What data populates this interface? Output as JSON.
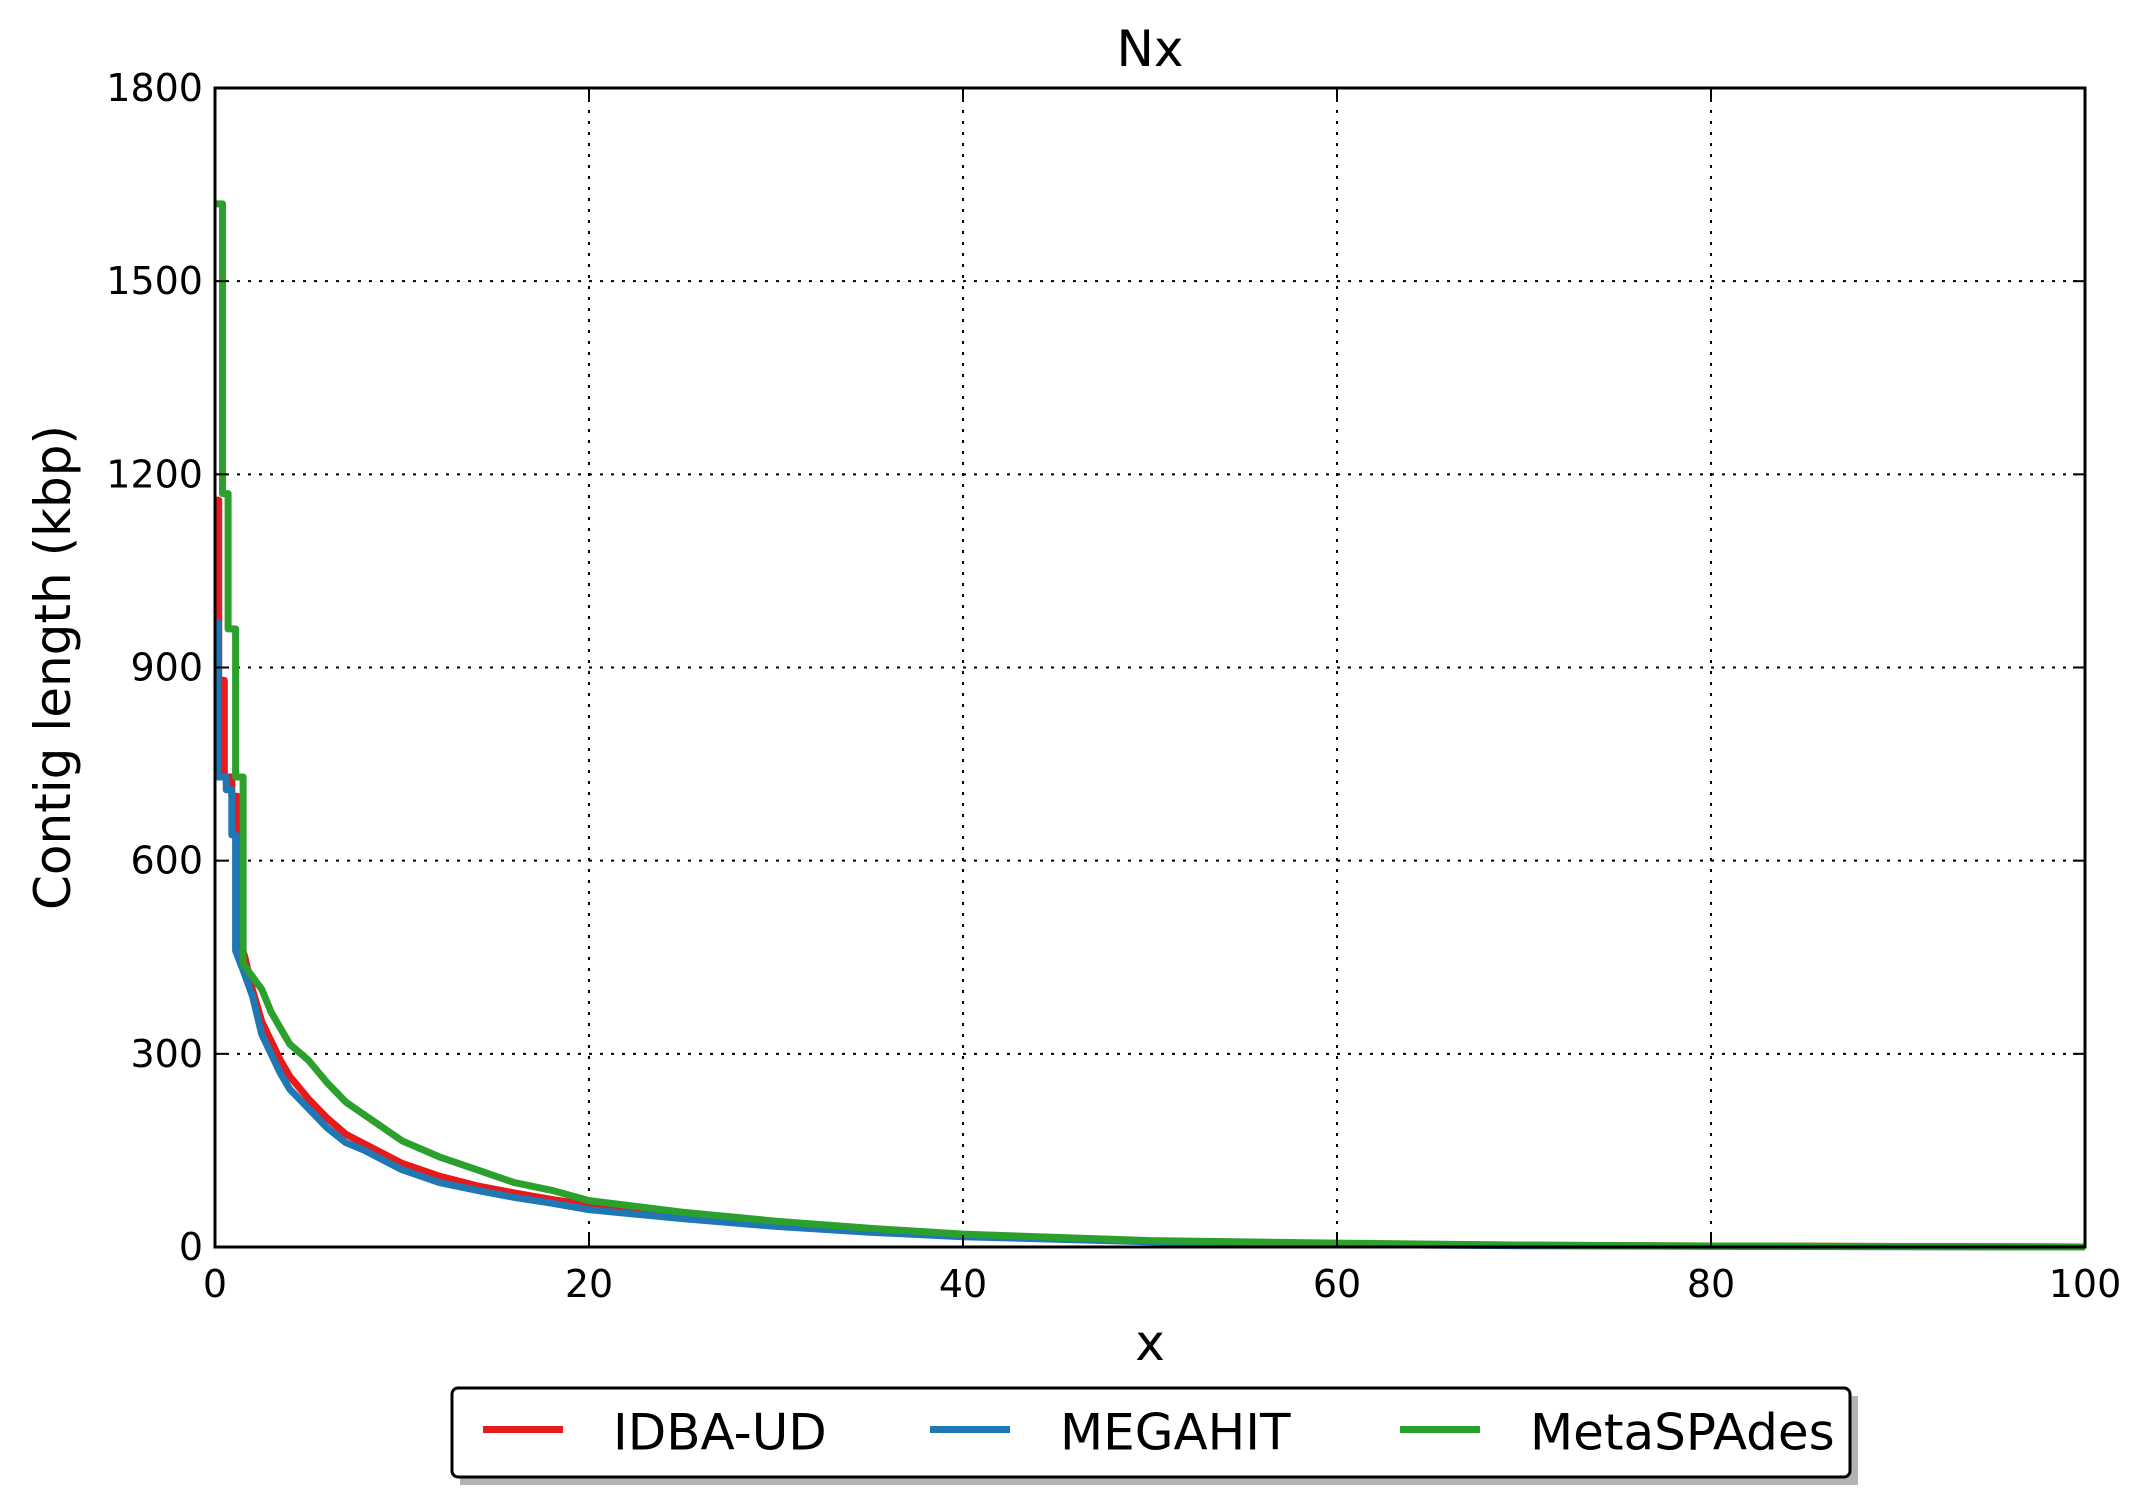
{
  "chart_data": {
    "type": "line",
    "title": "Nx",
    "xlabel": "x",
    "ylabel": "Contig length  (kbp)",
    "xlim": [
      0,
      100
    ],
    "ylim": [
      0,
      1800
    ],
    "xticks": [
      0,
      20,
      40,
      60,
      80,
      100
    ],
    "yticks": [
      0,
      300,
      600,
      900,
      1200,
      1500,
      1800
    ],
    "grid": true,
    "legend_position": "bottom-center",
    "series": [
      {
        "name": "IDBA-UD",
        "color": "#e41a1c",
        "x": [
          0,
          0.2,
          0.2,
          0.5,
          0.5,
          0.9,
          0.9,
          1.2,
          1.2,
          1.6,
          2.0,
          2.5,
          3.0,
          3.5,
          4.0,
          5.0,
          6.0,
          7.0,
          8.0,
          9.0,
          10.0,
          12.0,
          14.0,
          16.0,
          18.0,
          20.0,
          25.0,
          30.0,
          35.0,
          40.0,
          50.0,
          60.0,
          70.0,
          80.0,
          90.0,
          100.0
        ],
        "y": [
          1160,
          1160,
          880,
          880,
          730,
          730,
          700,
          700,
          490,
          450,
          400,
          350,
          320,
          290,
          265,
          230,
          200,
          175,
          160,
          145,
          130,
          110,
          95,
          84,
          74,
          65,
          48,
          35,
          25,
          17,
          9,
          5,
          3,
          1.5,
          0.8,
          0
        ]
      },
      {
        "name": "MEGAHIT",
        "color": "#1f78b4",
        "x": [
          0,
          0.15,
          0.15,
          0.6,
          0.6,
          0.9,
          0.9,
          1.1,
          1.1,
          1.5,
          2.0,
          2.5,
          3.0,
          3.5,
          4.0,
          5.0,
          6.0,
          7.0,
          8.0,
          9.0,
          10.0,
          12.0,
          14.0,
          16.0,
          18.0,
          20.0,
          25.0,
          30.0,
          35.0,
          40.0,
          50.0,
          60.0,
          70.0,
          80.0,
          90.0,
          100.0
        ],
        "y": [
          970,
          970,
          730,
          730,
          710,
          710,
          640,
          640,
          460,
          430,
          390,
          330,
          300,
          270,
          245,
          215,
          185,
          162,
          150,
          135,
          120,
          100,
          88,
          77,
          68,
          58,
          44,
          32,
          23,
          16,
          8,
          4,
          2,
          1,
          0.5,
          0
        ]
      },
      {
        "name": "MetaSPAdes",
        "color": "#2ca02c",
        "x": [
          0,
          0.4,
          0.4,
          0.7,
          0.7,
          1.1,
          1.1,
          1.5,
          1.5,
          2.0,
          2.5,
          3.0,
          3.5,
          4.0,
          5.0,
          6.0,
          7.0,
          8.0,
          9.0,
          10.0,
          12.0,
          14.0,
          16.0,
          18.0,
          20.0,
          25.0,
          30.0,
          35.0,
          40.0,
          50.0,
          60.0,
          70.0,
          80.0,
          90.0,
          100.0
        ],
        "y": [
          1620,
          1620,
          1170,
          1170,
          960,
          960,
          730,
          730,
          440,
          420,
          400,
          365,
          340,
          315,
          290,
          255,
          225,
          205,
          185,
          165,
          140,
          120,
          100,
          88,
          72,
          54,
          40,
          29,
          20,
          10,
          6,
          3,
          1.5,
          0.8,
          0
        ]
      }
    ]
  }
}
